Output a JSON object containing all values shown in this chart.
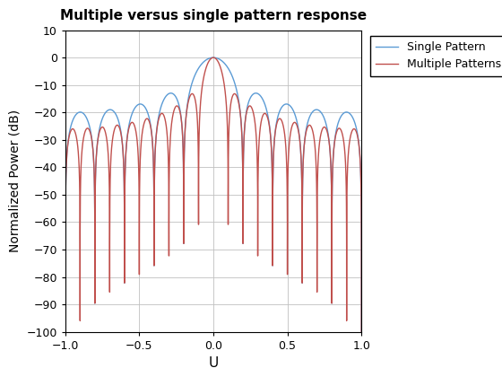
{
  "title": "Multiple versus single pattern response",
  "xlabel": "U",
  "ylabel": "Normalized Power (dB)",
  "xlim": [
    -1,
    1
  ],
  "ylim": [
    -100,
    10
  ],
  "yticks": [
    -100,
    -90,
    -80,
    -70,
    -60,
    -50,
    -40,
    -30,
    -20,
    -10,
    0,
    10
  ],
  "xticks": [
    -1,
    -0.5,
    0,
    0.5,
    1
  ],
  "single_color": "#5B9BD5",
  "multiple_color": "#C0504D",
  "legend": [
    "Single Pattern",
    "Multiple Patterns"
  ],
  "background_color": "#ffffff",
  "grid_color": "#c0c0c0"
}
